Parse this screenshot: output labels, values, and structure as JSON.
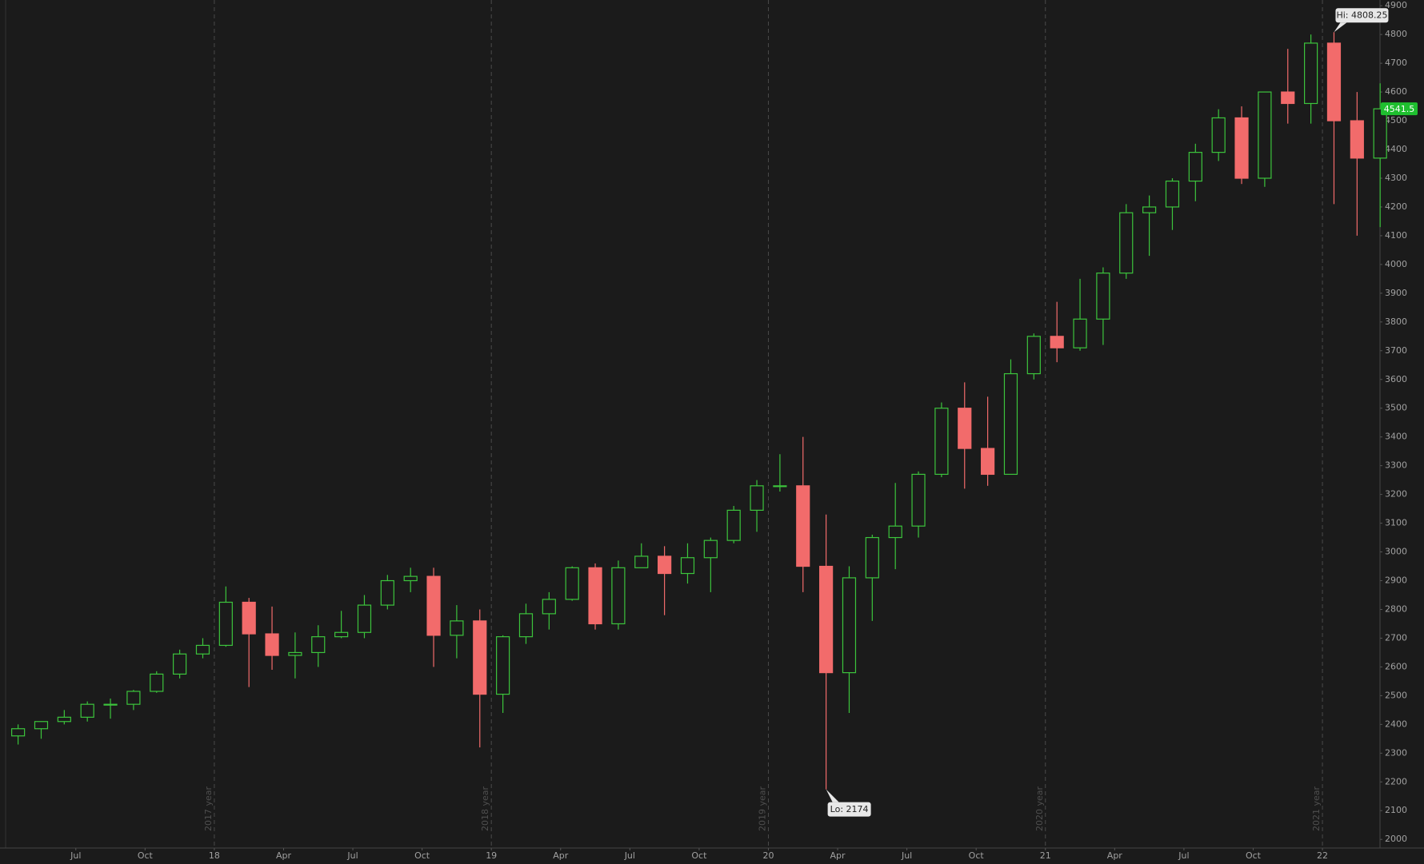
{
  "chart_data": {
    "type": "candlestick",
    "x": [
      "2017-04",
      "2017-05",
      "2017-06",
      "2017-07",
      "2017-08",
      "2017-09",
      "2017-10",
      "2017-11",
      "2017-12",
      "2018-01",
      "2018-02",
      "2018-03",
      "2018-04",
      "2018-05",
      "2018-06",
      "2018-07",
      "2018-08",
      "2018-09",
      "2018-10",
      "2018-11",
      "2018-12",
      "2019-01",
      "2019-02",
      "2019-03",
      "2019-04",
      "2019-05",
      "2019-06",
      "2019-07",
      "2019-08",
      "2019-09",
      "2019-10",
      "2019-11",
      "2019-12",
      "2020-01",
      "2020-02",
      "2020-03",
      "2020-04",
      "2020-05",
      "2020-06",
      "2020-07",
      "2020-08",
      "2020-09",
      "2020-10",
      "2020-11",
      "2020-12",
      "2021-01",
      "2021-02",
      "2021-03",
      "2021-04",
      "2021-05",
      "2021-06",
      "2021-07",
      "2021-08",
      "2021-09",
      "2021-10",
      "2021-11",
      "2021-12",
      "2022-01",
      "2022-02",
      "2022-03"
    ],
    "open": [
      2360,
      2385,
      2410,
      2425,
      2470,
      2470,
      2515,
      2575,
      2645,
      2675,
      2825,
      2715,
      2640,
      2650,
      2705,
      2720,
      2815,
      2900,
      2915,
      2710,
      2760,
      2505,
      2705,
      2785,
      2835,
      2945,
      2750,
      2945,
      2985,
      2925,
      2980,
      3040,
      3145,
      3230,
      3230,
      2950,
      2580,
      2910,
      3050,
      3090,
      3270,
      3500,
      3360,
      3270,
      3620,
      3750,
      3710,
      3810,
      3970,
      4180,
      4200,
      4290,
      4390,
      4510,
      4300,
      4600,
      4560,
      4770,
      4500,
      4370
    ],
    "high": [
      2400,
      2410,
      2450,
      2480,
      2490,
      2520,
      2585,
      2660,
      2700,
      2880,
      2840,
      2810,
      2720,
      2745,
      2795,
      2850,
      2920,
      2945,
      2945,
      2815,
      2800,
      2710,
      2820,
      2860,
      2950,
      2960,
      2970,
      3030,
      3020,
      3030,
      3050,
      3160,
      3250,
      3340,
      3400,
      3130,
      2950,
      3060,
      3240,
      3280,
      3520,
      3590,
      3540,
      3670,
      3760,
      3870,
      3950,
      3990,
      4210,
      4240,
      4300,
      4420,
      4540,
      4550,
      4600,
      4750,
      4800,
      4808.25,
      4600,
      4630
    ],
    "low": [
      2330,
      2350,
      2400,
      2410,
      2420,
      2450,
      2510,
      2560,
      2630,
      2670,
      2530,
      2590,
      2560,
      2600,
      2700,
      2700,
      2800,
      2860,
      2600,
      2630,
      2320,
      2440,
      2680,
      2730,
      2830,
      2730,
      2730,
      2950,
      2780,
      2890,
      2860,
      3030,
      3070,
      3210,
      2860,
      2174,
      2440,
      2760,
      2940,
      3050,
      3260,
      3220,
      3230,
      3270,
      3600,
      3660,
      3700,
      3720,
      3950,
      4030,
      4120,
      4220,
      4360,
      4280,
      4270,
      4490,
      4490,
      4210,
      4100,
      4130
    ],
    "close": [
      2385,
      2410,
      2425,
      2470,
      2470,
      2515,
      2575,
      2645,
      2675,
      2825,
      2715,
      2640,
      2650,
      2705,
      2720,
      2815,
      2900,
      2915,
      2710,
      2760,
      2505,
      2705,
      2785,
      2835,
      2945,
      2750,
      2945,
      2985,
      2925,
      2980,
      3040,
      3145,
      3230,
      3230,
      2950,
      2580,
      2910,
      3050,
      3090,
      3270,
      3500,
      3360,
      3270,
      3620,
      3750,
      3710,
      3810,
      3970,
      4180,
      4200,
      4290,
      4390,
      4510,
      4300,
      4600,
      4560,
      4770,
      4500,
      4370,
      4541.5
    ],
    "up_color": "#3cc43c",
    "down_color": "#f26b6b",
    "ylim": [
      1970,
      4920
    ],
    "yticks": [
      2000,
      2100,
      2200,
      2300,
      2400,
      2500,
      2600,
      2700,
      2800,
      2900,
      3000,
      3100,
      3200,
      3300,
      3400,
      3500,
      3600,
      3700,
      3800,
      3900,
      4000,
      4100,
      4200,
      4300,
      4400,
      4500,
      4600,
      4700,
      4800,
      4900
    ],
    "xlim": [
      "2017-03",
      "2022-03"
    ],
    "xticks": [
      {
        "value": "2017-07",
        "label": "Jul"
      },
      {
        "value": "2017-10",
        "label": "Oct"
      },
      {
        "value": "2018-01",
        "label": "18"
      },
      {
        "value": "2018-04",
        "label": "Apr"
      },
      {
        "value": "2018-07",
        "label": "Jul"
      },
      {
        "value": "2018-10",
        "label": "Oct"
      },
      {
        "value": "2019-01",
        "label": "19"
      },
      {
        "value": "2019-04",
        "label": "Apr"
      },
      {
        "value": "2019-07",
        "label": "Jul"
      },
      {
        "value": "2019-10",
        "label": "Oct"
      },
      {
        "value": "2020-01",
        "label": "20"
      },
      {
        "value": "2020-04",
        "label": "Apr"
      },
      {
        "value": "2020-07",
        "label": "Jul"
      },
      {
        "value": "2020-10",
        "label": "Oct"
      },
      {
        "value": "2021-01",
        "label": "21"
      },
      {
        "value": "2021-04",
        "label": "Apr"
      },
      {
        "value": "2021-07",
        "label": "Jul"
      },
      {
        "value": "2021-10",
        "label": "Oct"
      },
      {
        "value": "2022-01",
        "label": "22"
      }
    ],
    "period_separators": [
      {
        "value": "2018-01",
        "label": "2017 year"
      },
      {
        "value": "2019-01",
        "label": "2018 year"
      },
      {
        "value": "2020-01",
        "label": "2019 year"
      },
      {
        "value": "2021-01",
        "label": "2020 year"
      },
      {
        "value": "2022-01",
        "label": "2021 year"
      }
    ],
    "annotations": [
      {
        "label": "Hi: 4808.25",
        "index": 57,
        "at": "high"
      },
      {
        "label": "Lo: 2174",
        "index": 35,
        "at": "low"
      }
    ],
    "last_price_color": "#1fbf2f"
  }
}
